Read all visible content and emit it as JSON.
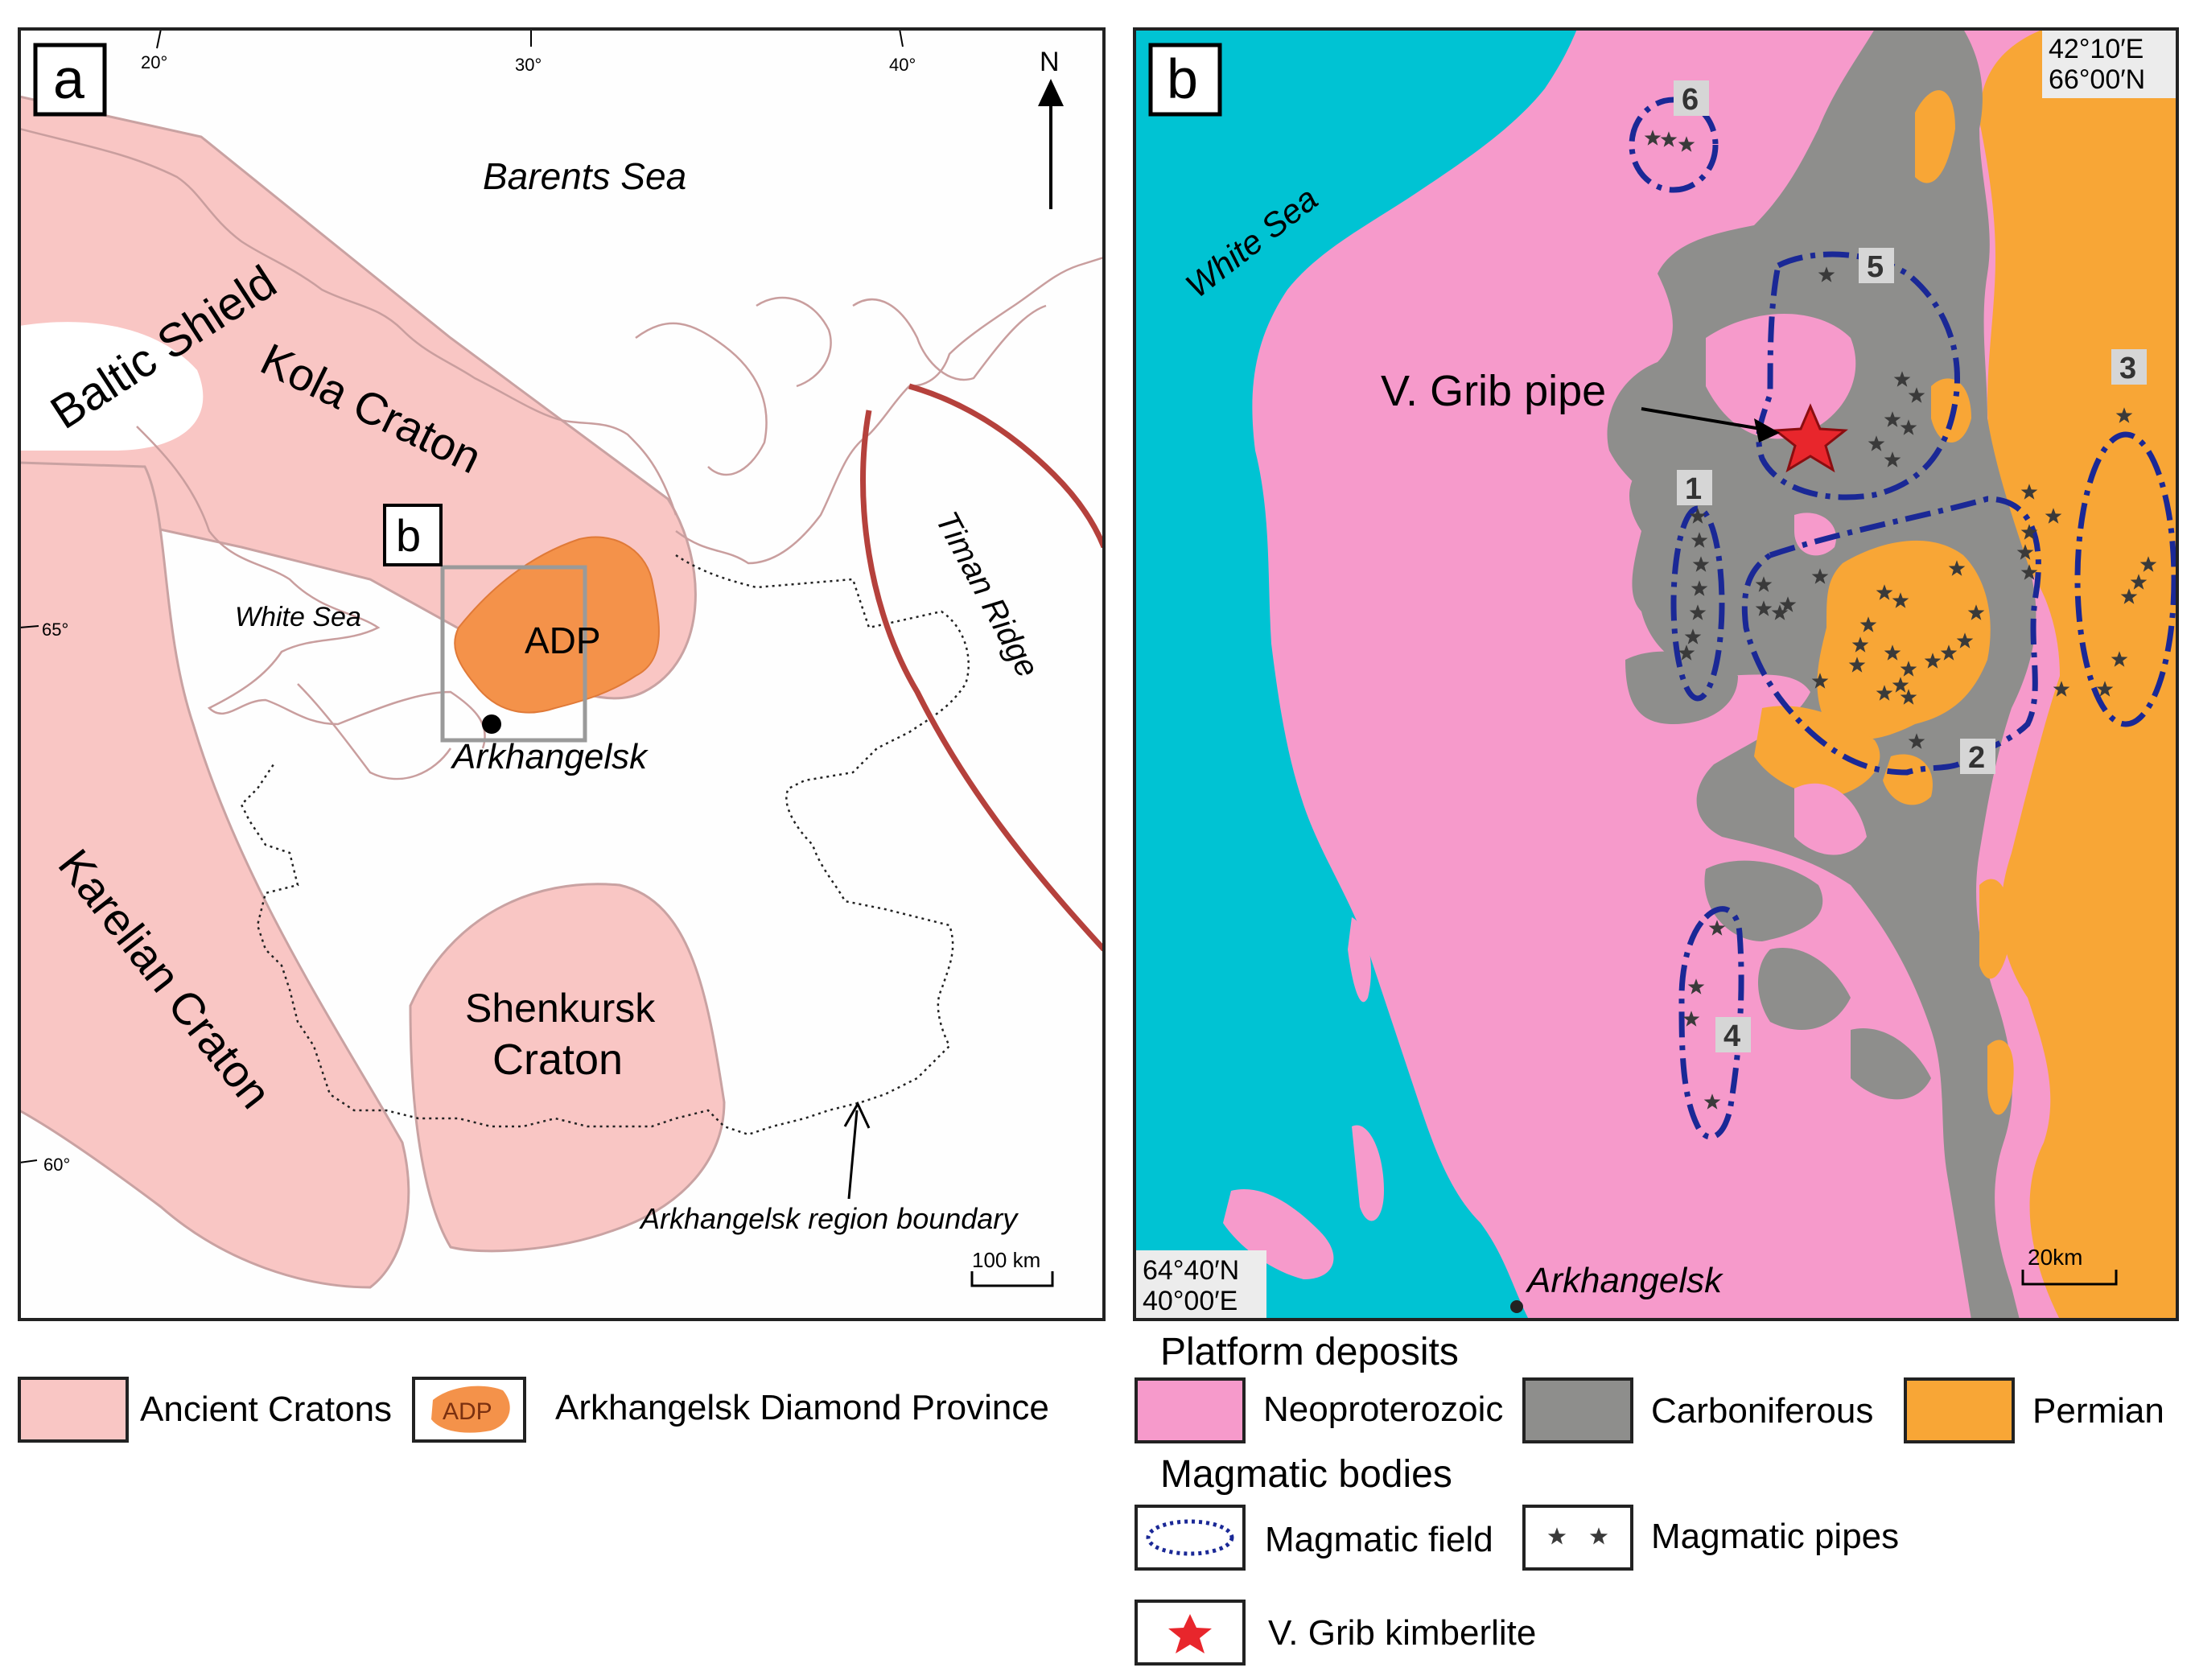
{
  "panel_a": {
    "label": "a",
    "longitudes": [
      "20°",
      "30°",
      "40°"
    ],
    "latitudes": [
      "65°",
      "60°"
    ],
    "north": "N",
    "places": {
      "barents_sea": "Barents Sea",
      "baltic_shield": "Baltic Shield",
      "kola_craton": "Kola Craton",
      "white_sea": "White Sea",
      "adp": "ADP",
      "inset_label": "b",
      "arkhangelsk": "Arkhangelsk",
      "timan_ridge": "Timan Ridge",
      "karelian_craton": "Karelian Craton",
      "shenkursk_line1": "Shenkursk",
      "shenkursk_line2": "Craton",
      "region_boundary": "Arkhangelsk region boundary"
    },
    "scale": "100 km",
    "colors": {
      "craton": "#F9C6C4",
      "adp": "#F4924A",
      "timan": "#B5413C",
      "coast": "#C99E9E"
    }
  },
  "panel_b": {
    "label": "b",
    "corner_ne": [
      "42°10′E",
      "66°00′N"
    ],
    "corner_sw": [
      "64°40′N",
      "40°00′E"
    ],
    "white_sea": "White Sea",
    "pipe_label": "V. Grib pipe",
    "arkhangelsk": "Arkhangelsk",
    "scale": "20km",
    "fields": [
      "1",
      "2",
      "3",
      "4",
      "5",
      "6"
    ],
    "colors": {
      "sea": "#00C3D3",
      "neoproterozoic": "#F69ACB",
      "carboniferous": "#8E8E8C",
      "permian": "#F8A636",
      "field": "#1A2896",
      "grib": "#E8262C"
    }
  },
  "legend_a": {
    "cratons": "Ancient Cratons",
    "adp_icon": "ADP",
    "adp": "Arkhangelsk Diamond Province"
  },
  "legend_b": {
    "platform_title": "Platform deposits",
    "neoproterozoic": "Neoproterozoic",
    "carboniferous": "Carboniferous",
    "permian": "Permian",
    "magmatic_title": "Magmatic bodies",
    "field": "Magmatic field",
    "pipes": "Magmatic pipes",
    "grib": "V. Grib kimberlite"
  }
}
